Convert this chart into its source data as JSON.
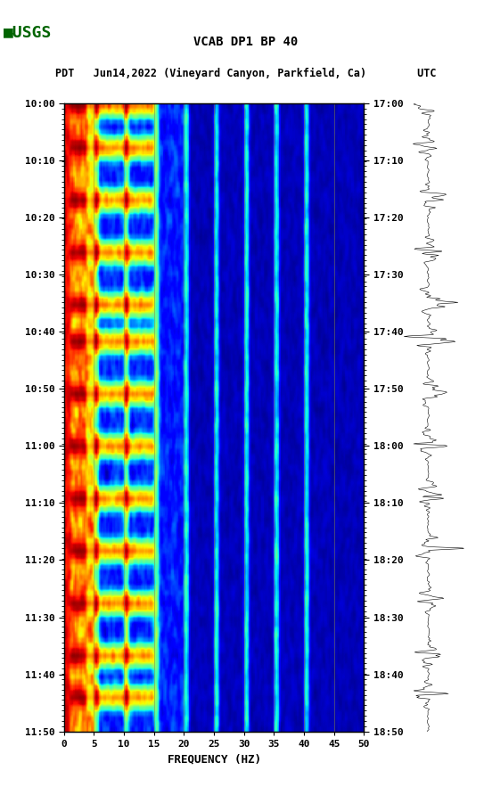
{
  "title_line1": "VCAB DP1 BP 40",
  "title_line2": "PDT   Jun14,2022 (Vineyard Canyon, Parkfield, Ca)        UTC",
  "xlabel": "FREQUENCY (HZ)",
  "freq_min": 0,
  "freq_max": 50,
  "freq_ticks": [
    0,
    5,
    10,
    15,
    20,
    25,
    30,
    35,
    40,
    45,
    50
  ],
  "left_time_labels": [
    "10:00",
    "10:10",
    "10:20",
    "10:30",
    "10:40",
    "10:50",
    "11:00",
    "11:10",
    "11:20",
    "11:30",
    "11:40",
    "11:50"
  ],
  "right_time_labels": [
    "17:00",
    "17:10",
    "17:20",
    "17:30",
    "17:40",
    "17:50",
    "18:00",
    "18:10",
    "18:20",
    "18:30",
    "18:40",
    "18:50"
  ],
  "n_time_steps": 120,
  "n_freq_steps": 200,
  "bg_color": "white",
  "spectrogram_colormap": "jet",
  "vertical_lines_x": [
    5,
    10,
    15,
    20,
    25,
    30,
    35,
    40,
    45
  ],
  "usgs_logo_color": "#006400",
  "seed": 42
}
